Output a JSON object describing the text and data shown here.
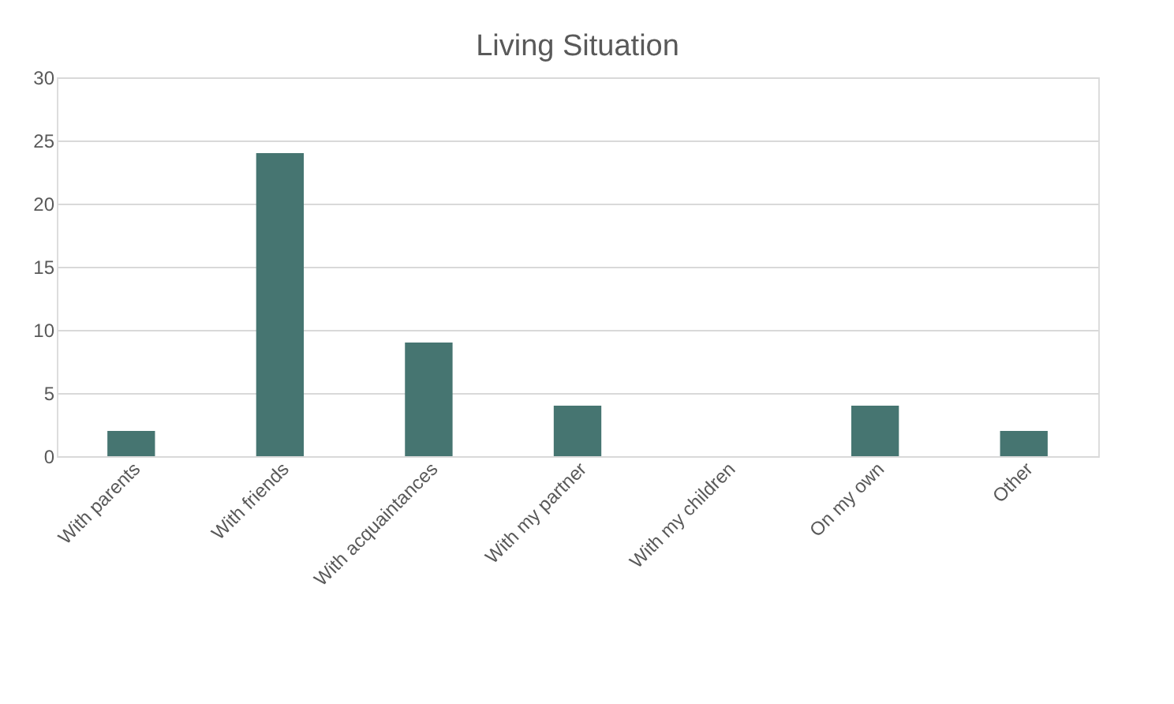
{
  "chart_data": {
    "type": "bar",
    "title": "Living Situation",
    "categories": [
      "With parents",
      "With friends",
      "With acquaintances",
      "With my partner",
      "With my children",
      "On my own",
      "Other"
    ],
    "values": [
      2,
      24,
      9,
      4,
      0,
      4,
      2
    ],
    "color": "#467571",
    "ylim": [
      0,
      30
    ],
    "yticks": [
      0,
      5,
      10,
      15,
      20,
      25,
      30
    ],
    "grid": "y"
  }
}
